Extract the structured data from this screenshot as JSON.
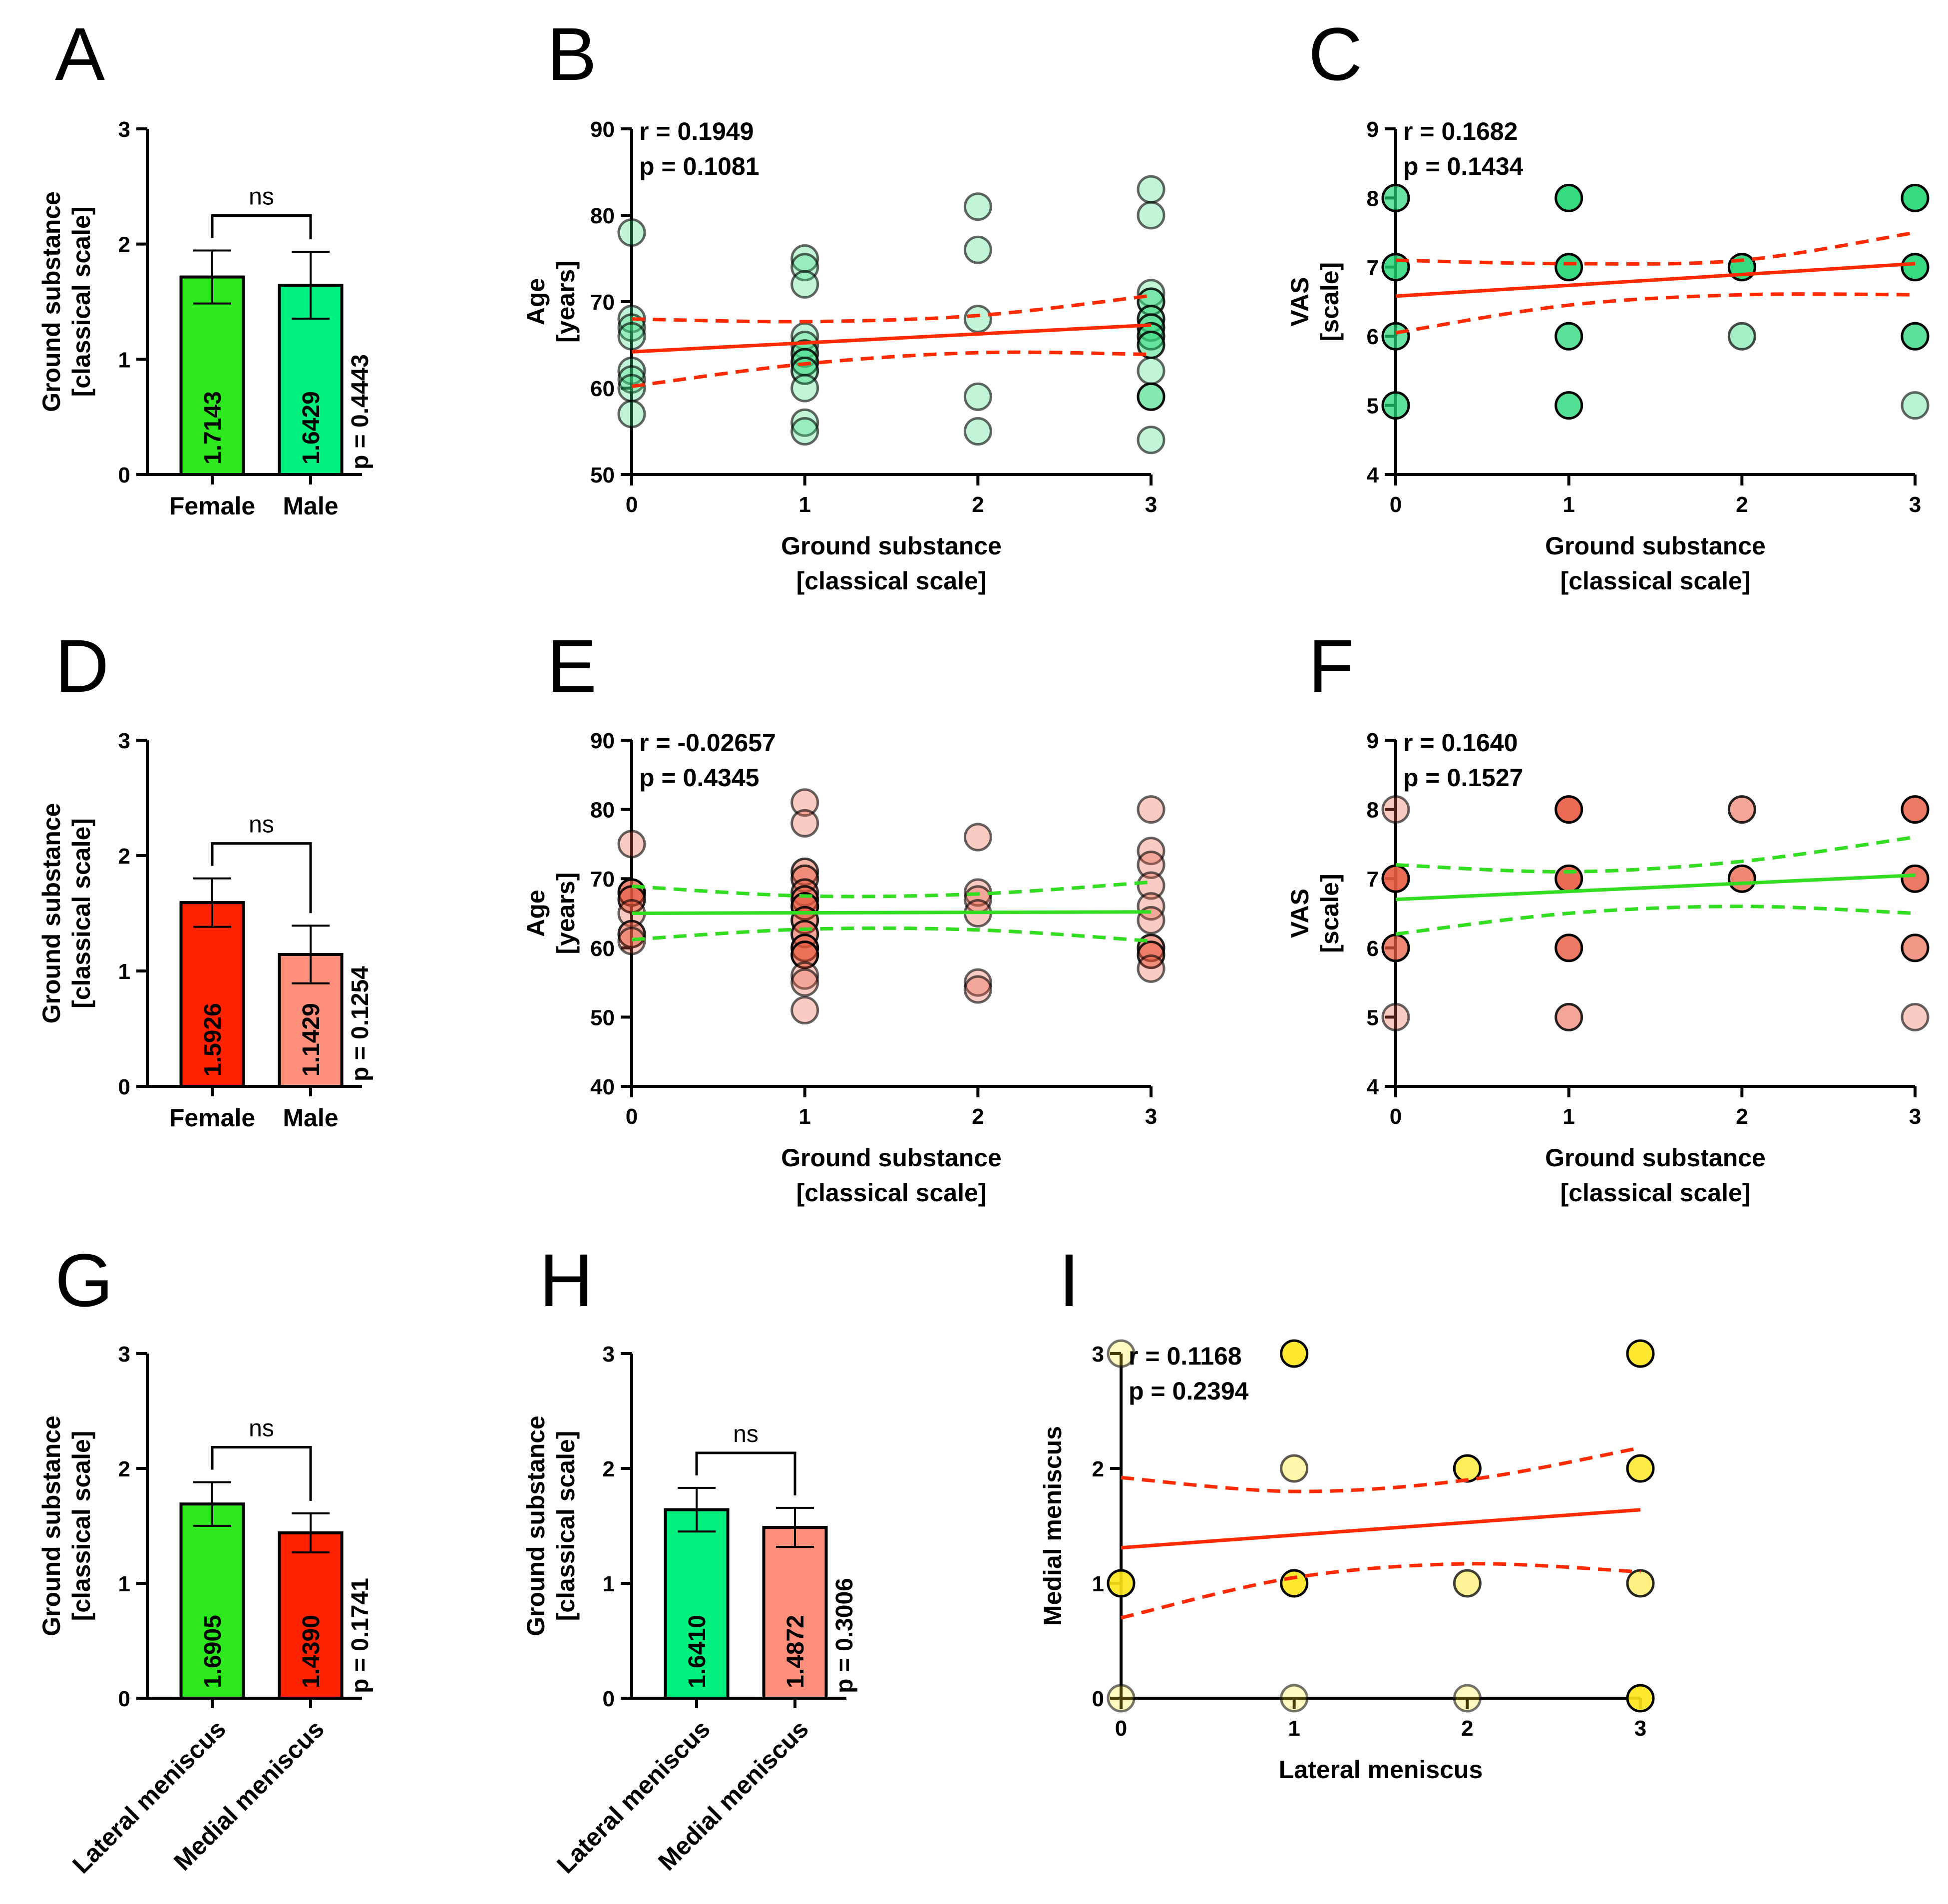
{
  "colors": {
    "green": "#2ee81f",
    "spring_green": "#00f080",
    "red": "#ff2200",
    "salmon": "#ff8f7a",
    "yellow": "#ffe61a",
    "fit_red": "#ff2a00",
    "fit_green": "#33dd22",
    "point_green": "#3ddc84",
    "point_red": "#e85a40"
  },
  "chart_data": [
    {
      "id": "A",
      "type": "bar",
      "panel_label": "A",
      "categories": [
        "Female",
        "Male"
      ],
      "values": [
        1.7143,
        1.6429
      ],
      "value_labels": [
        "1.7143",
        "1.6429"
      ],
      "errors": [
        0.23,
        0.29
      ],
      "bar_colors": [
        "#2ee81f",
        "#00f080"
      ],
      "ylim": [
        0,
        3
      ],
      "yticks": [
        "0",
        "1",
        "2",
        "3"
      ],
      "ylabel": [
        "Ground substance",
        "[classical scale]"
      ],
      "significance": "ns",
      "p_label": "p = 0.4443",
      "rotate_categories": false
    },
    {
      "id": "B",
      "type": "scatter",
      "panel_label": "B",
      "xlim": [
        0,
        3
      ],
      "ylim": [
        50,
        90
      ],
      "xticks": [
        "0",
        "1",
        "2",
        "3"
      ],
      "yticks": [
        "50",
        "60",
        "70",
        "80",
        "90"
      ],
      "xlabel": [
        "Ground substance",
        "[classical scale]"
      ],
      "ylabel": [
        "Age",
        "[years]"
      ],
      "r_label": "r = 0.1949",
      "p_label": "p = 0.1081",
      "point_color": "#3ddc84",
      "fit_color": "#ff2a00",
      "fit": [
        64.2,
        67.3
      ],
      "band_upper": [
        68.0,
        67.7,
        68.4,
        70.7
      ],
      "band_lower": [
        60.2,
        62.8,
        64.1,
        63.9
      ],
      "points": [
        [
          0,
          78,
          0.35
        ],
        [
          0,
          68,
          0.35
        ],
        [
          0,
          67,
          0.35
        ],
        [
          0,
          66,
          0.35
        ],
        [
          0,
          62,
          0.35
        ],
        [
          0,
          61,
          0.35
        ],
        [
          0,
          60,
          0.35
        ],
        [
          0,
          57,
          0.35
        ],
        [
          1,
          75,
          0.35
        ],
        [
          1,
          74,
          0.35
        ],
        [
          1,
          72,
          0.35
        ],
        [
          1,
          66,
          0.35
        ],
        [
          1,
          65,
          0.35
        ],
        [
          1,
          64,
          0.5
        ],
        [
          1,
          63,
          0.6
        ],
        [
          1,
          62,
          0.5
        ],
        [
          1,
          60,
          0.35
        ],
        [
          1,
          56,
          0.35
        ],
        [
          1,
          55,
          0.35
        ],
        [
          2,
          81,
          0.35
        ],
        [
          2,
          76,
          0.35
        ],
        [
          2,
          68,
          0.35
        ],
        [
          2,
          59,
          0.35
        ],
        [
          2,
          55,
          0.35
        ],
        [
          3,
          83,
          0.35
        ],
        [
          3,
          80,
          0.35
        ],
        [
          3,
          71,
          0.35
        ],
        [
          3,
          70,
          0.6
        ],
        [
          3,
          68,
          0.6
        ],
        [
          3,
          67,
          0.6
        ],
        [
          3,
          66,
          0.6
        ],
        [
          3,
          65,
          0.6
        ],
        [
          3,
          62,
          0.35
        ],
        [
          3,
          59,
          0.7
        ],
        [
          3,
          54,
          0.35
        ]
      ]
    },
    {
      "id": "C",
      "type": "scatter",
      "panel_label": "C",
      "xlim": [
        0,
        3
      ],
      "ylim": [
        4,
        9
      ],
      "xticks": [
        "0",
        "1",
        "2",
        "3"
      ],
      "yticks": [
        "4",
        "5",
        "6",
        "7",
        "8",
        "9"
      ],
      "xlabel": [
        "Ground substance",
        "[classical scale]"
      ],
      "ylabel": [
        "VAS",
        "[scale]"
      ],
      "r_label": "r = 0.1682",
      "p_label": "p = 0.1434",
      "point_color": "#1fd673",
      "fit_color": "#ff2a00",
      "fit": [
        6.58,
        7.05
      ],
      "band_upper": [
        7.1,
        7.05,
        7.1,
        7.5
      ],
      "band_lower": [
        6.05,
        6.45,
        6.6,
        6.6
      ],
      "points": [
        [
          0,
          8,
          0.75
        ],
        [
          0,
          7,
          0.9
        ],
        [
          0,
          6,
          0.75
        ],
        [
          0,
          5,
          0.8
        ],
        [
          1,
          8,
          1.0
        ],
        [
          1,
          7,
          1.0
        ],
        [
          1,
          6,
          0.8
        ],
        [
          1,
          5,
          0.85
        ],
        [
          2,
          7,
          1.0
        ],
        [
          2,
          6,
          0.45
        ],
        [
          3,
          8,
          1.0
        ],
        [
          3,
          7,
          1.0
        ],
        [
          3,
          6,
          0.8
        ],
        [
          3,
          5,
          0.35
        ]
      ]
    },
    {
      "id": "D",
      "type": "bar",
      "panel_label": "D",
      "categories": [
        "Female",
        "Male"
      ],
      "values": [
        1.5926,
        1.1429
      ],
      "value_labels": [
        "1.5926",
        "1.1429"
      ],
      "errors": [
        0.21,
        0.25
      ],
      "bar_colors": [
        "#ff2200",
        "#ff8f7a"
      ],
      "ylim": [
        0,
        3
      ],
      "yticks": [
        "0",
        "1",
        "2",
        "3"
      ],
      "ylabel": [
        "Ground substance",
        "[classical scale]"
      ],
      "significance": "ns",
      "p_label": "p = 0.1254",
      "rotate_categories": false
    },
    {
      "id": "E",
      "type": "scatter",
      "panel_label": "E",
      "xlim": [
        0,
        3
      ],
      "ylim": [
        40,
        90
      ],
      "xticks": [
        "0",
        "1",
        "2",
        "3"
      ],
      "yticks": [
        "40",
        "50",
        "60",
        "70",
        "80",
        "90"
      ],
      "xlabel": [
        "Ground substance",
        "[classical scale]"
      ],
      "ylabel": [
        "Age",
        "[years]"
      ],
      "r_label": "r = -0.02657",
      "p_label": "p = 0.4345",
      "point_color": "#e85a40",
      "fit_color": "#33dd22",
      "fit": [
        65.0,
        65.2
      ],
      "band_upper": [
        68.9,
        67.5,
        67.8,
        69.5
      ],
      "band_lower": [
        61.2,
        62.7,
        62.6,
        61.0
      ],
      "points": [
        [
          0,
          75,
          0.35
        ],
        [
          0,
          68,
          0.8
        ],
        [
          0,
          67,
          0.6
        ],
        [
          0,
          65,
          0.35
        ],
        [
          0,
          62,
          0.6
        ],
        [
          0,
          61,
          0.35
        ],
        [
          1,
          81,
          0.35
        ],
        [
          1,
          78,
          0.35
        ],
        [
          1,
          71,
          0.5
        ],
        [
          1,
          70,
          0.5
        ],
        [
          1,
          68,
          0.5
        ],
        [
          1,
          67,
          0.6
        ],
        [
          1,
          66,
          0.7
        ],
        [
          1,
          64,
          0.6
        ],
        [
          1,
          62,
          0.6
        ],
        [
          1,
          60,
          0.7
        ],
        [
          1,
          59,
          0.7
        ],
        [
          1,
          56,
          0.35
        ],
        [
          1,
          55,
          0.35
        ],
        [
          1,
          51,
          0.35
        ],
        [
          2,
          76,
          0.35
        ],
        [
          2,
          68,
          0.35
        ],
        [
          2,
          67,
          0.35
        ],
        [
          2,
          65,
          0.35
        ],
        [
          2,
          55,
          0.35
        ],
        [
          2,
          54,
          0.35
        ],
        [
          3,
          80,
          0.35
        ],
        [
          3,
          74,
          0.35
        ],
        [
          3,
          72,
          0.35
        ],
        [
          3,
          69,
          0.35
        ],
        [
          3,
          66,
          0.35
        ],
        [
          3,
          64,
          0.35
        ],
        [
          3,
          60,
          0.6
        ],
        [
          3,
          59,
          0.6
        ],
        [
          3,
          57,
          0.35
        ]
      ]
    },
    {
      "id": "F",
      "type": "scatter",
      "panel_label": "F",
      "xlim": [
        0,
        3
      ],
      "ylim": [
        4,
        9
      ],
      "xticks": [
        "0",
        "1",
        "2",
        "3"
      ],
      "yticks": [
        "4",
        "5",
        "6",
        "7",
        "8",
        "9"
      ],
      "xlabel": [
        "Ground substance",
        "[classical scale]"
      ],
      "ylabel": [
        "VAS",
        "[scale]"
      ],
      "r_label": "r = 0.1640",
      "p_label": "p = 0.1527",
      "point_color": "#e85a40",
      "fit_color": "#33dd22",
      "fit": [
        6.7,
        7.05
      ],
      "band_upper": [
        7.2,
        7.1,
        7.25,
        7.6
      ],
      "band_lower": [
        6.2,
        6.5,
        6.6,
        6.5
      ],
      "points": [
        [
          0,
          8,
          0.35
        ],
        [
          0,
          7,
          1.0
        ],
        [
          0,
          6,
          0.8
        ],
        [
          0,
          5,
          0.35
        ],
        [
          1,
          8,
          1.0
        ],
        [
          1,
          7,
          1.0
        ],
        [
          1,
          6,
          0.9
        ],
        [
          1,
          5,
          0.6
        ],
        [
          2,
          8,
          0.6
        ],
        [
          2,
          7,
          0.8
        ],
        [
          3,
          8,
          0.9
        ],
        [
          3,
          7,
          0.9
        ],
        [
          3,
          6,
          0.7
        ],
        [
          3,
          5,
          0.35
        ]
      ]
    },
    {
      "id": "G",
      "type": "bar",
      "panel_label": "G",
      "categories": [
        "Lateral meniscus",
        "Medial meniscus"
      ],
      "values": [
        1.6905,
        1.439
      ],
      "value_labels": [
        "1.6905",
        "1.4390"
      ],
      "errors": [
        0.19,
        0.17
      ],
      "bar_colors": [
        "#2ee81f",
        "#ff2200"
      ],
      "ylim": [
        0,
        3
      ],
      "yticks": [
        "0",
        "1",
        "2",
        "3"
      ],
      "ylabel": [
        "Ground substance",
        "[classical scale]"
      ],
      "significance": "ns",
      "p_label": "p = 0.1741",
      "rotate_categories": true
    },
    {
      "id": "H",
      "type": "bar",
      "panel_label": "H",
      "categories": [
        "Lateral meniscus",
        "Medial meniscus"
      ],
      "values": [
        1.641,
        1.4872
      ],
      "value_labels": [
        "1.6410",
        "1.4872"
      ],
      "errors": [
        0.19,
        0.17
      ],
      "bar_colors": [
        "#00f080",
        "#ff8f7a"
      ],
      "ylim": [
        0,
        3
      ],
      "yticks": [
        "0",
        "1",
        "2",
        "3"
      ],
      "ylabel": [
        "Ground substance",
        "[classical scale]"
      ],
      "significance": "ns",
      "p_label": "p = 0.3006",
      "rotate_categories": true
    },
    {
      "id": "I",
      "type": "scatter",
      "panel_label": "I",
      "xlim": [
        0,
        3
      ],
      "ylim": [
        0,
        3
      ],
      "xticks": [
        "0",
        "1",
        "2",
        "3"
      ],
      "yticks": [
        "0",
        "1",
        "2",
        "3"
      ],
      "xlabel": [
        "Lateral meniscus"
      ],
      "ylabel": [
        "Medial meniscus"
      ],
      "r_label": "r = 0.1168",
      "p_label": "p = 0.2394",
      "point_color": "#ffe61a",
      "fit_color": "#ff2a00",
      "fit": [
        1.31,
        1.64
      ],
      "band_upper": [
        1.92,
        1.8,
        1.9,
        2.18
      ],
      "band_lower": [
        0.7,
        1.05,
        1.17,
        1.1
      ],
      "points": [
        [
          0,
          3,
          0.3
        ],
        [
          0,
          1,
          1.0
        ],
        [
          0,
          0,
          0.3
        ],
        [
          1,
          3,
          1.0
        ],
        [
          1,
          2,
          0.4
        ],
        [
          1,
          1,
          1.0
        ],
        [
          1,
          0,
          0.3
        ],
        [
          2,
          2,
          0.8
        ],
        [
          2,
          1,
          0.5
        ],
        [
          2,
          0,
          0.3
        ],
        [
          3,
          3,
          1.0
        ],
        [
          3,
          2,
          0.9
        ],
        [
          3,
          1,
          0.6
        ],
        [
          3,
          0,
          1.0
        ]
      ]
    }
  ]
}
